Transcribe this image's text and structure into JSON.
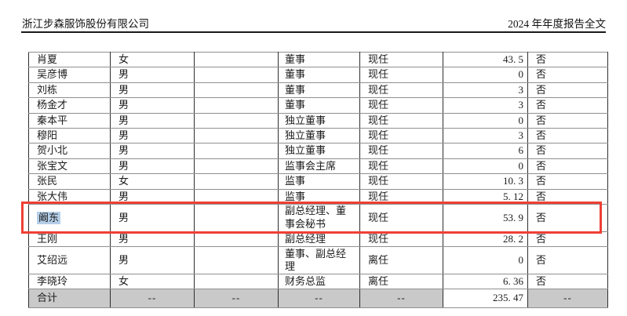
{
  "header": {
    "company": "浙江步森服饰股份有限公司",
    "title": "2024 年年度报告全文"
  },
  "table": {
    "rows": [
      {
        "name": "肖夏",
        "gender": "女",
        "age": "",
        "position": "董事",
        "status": "现任",
        "value": "43. 5",
        "flag": "否"
      },
      {
        "name": "吴彦博",
        "gender": "男",
        "age": "",
        "position": "董事",
        "status": "现任",
        "value": "0",
        "flag": "否"
      },
      {
        "name": "刘栋",
        "gender": "男",
        "age": "",
        "position": "董事",
        "status": "现任",
        "value": "3",
        "flag": "否"
      },
      {
        "name": "杨金才",
        "gender": "男",
        "age": "",
        "position": "董事",
        "status": "现任",
        "value": "3",
        "flag": "否"
      },
      {
        "name": "秦本平",
        "gender": "男",
        "age": "",
        "position": "独立董事",
        "status": "现任",
        "value": "0",
        "flag": "否"
      },
      {
        "name": "穆阳",
        "gender": "男",
        "age": "",
        "position": "独立董事",
        "status": "现任",
        "value": "3",
        "flag": "否"
      },
      {
        "name": "贺小北",
        "gender": "男",
        "age": "",
        "position": "独立董事",
        "status": "现任",
        "value": "6",
        "flag": "否"
      },
      {
        "name": "张宝文",
        "gender": "男",
        "age": "",
        "position": "监事会主席",
        "status": "现任",
        "value": "0",
        "flag": "否"
      },
      {
        "name": "张民",
        "gender": "女",
        "age": "",
        "position": "监事",
        "status": "现任",
        "value": "10. 3",
        "flag": "否"
      },
      {
        "name": "张大伟",
        "gender": "男",
        "age": "",
        "position": "监事",
        "status": "现任",
        "value": "5. 12",
        "flag": "否"
      },
      {
        "name": "阚东",
        "gender": "男",
        "age": "",
        "position": "副总经理、董事会秘书",
        "status": "现任",
        "value": "53. 9",
        "flag": "否",
        "tall": true,
        "highlighted": true,
        "annotated": true
      },
      {
        "name": "王刚",
        "gender": "男",
        "age": "",
        "position": "副总经理",
        "status": "现任",
        "value": "28. 2",
        "flag": "否"
      },
      {
        "name": "艾绍远",
        "gender": "男",
        "age": "",
        "position": "董事、副总经理",
        "status": "离任",
        "value": "0",
        "flag": "否",
        "tall": true
      },
      {
        "name": "李晓玲",
        "gender": "女",
        "age": "",
        "position": "财务总监",
        "status": "离任",
        "value": "6. 36",
        "flag": "否"
      }
    ],
    "summary": {
      "label": "合计",
      "dash_gender": "--",
      "dash_age": "--",
      "dash_position": "--",
      "dash_status": "--",
      "value": "235. 47",
      "dash_flag": "--"
    }
  },
  "annotation": {
    "highlight_color": "#b5cee8",
    "box_color": "#ee4034",
    "summary_bg": "#c9c9c9"
  }
}
